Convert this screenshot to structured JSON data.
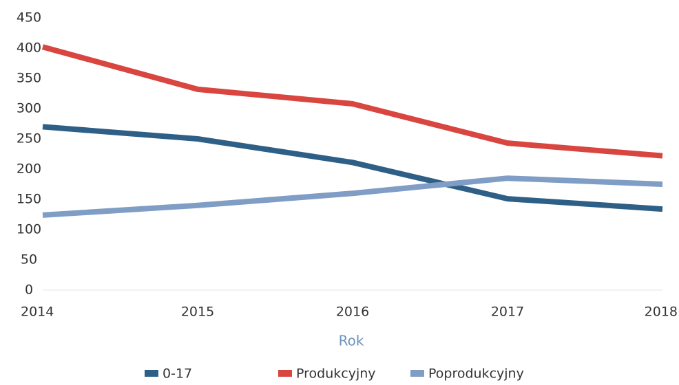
{
  "chart_data": {
    "type": "line",
    "x_label": "Rok",
    "categories": [
      "2014",
      "2015",
      "2016",
      "2017",
      "2018"
    ],
    "series": [
      {
        "name": "0-17",
        "color": "#2e5f86",
        "values": [
          270,
          250,
          211,
          151,
          134
        ]
      },
      {
        "name": "Produkcyjny",
        "color": "#d9453f",
        "values": [
          402,
          332,
          308,
          243,
          222
        ]
      },
      {
        "name": "Poprodukcyjny",
        "color": "#7f9dc5",
        "values": [
          124,
          140,
          160,
          185,
          175
        ]
      }
    ],
    "ylim": [
      0,
      450
    ],
    "yticks": [
      0,
      50,
      100,
      150,
      200,
      250,
      300,
      350,
      400,
      450
    ],
    "grid": false,
    "legend": "bottom"
  }
}
